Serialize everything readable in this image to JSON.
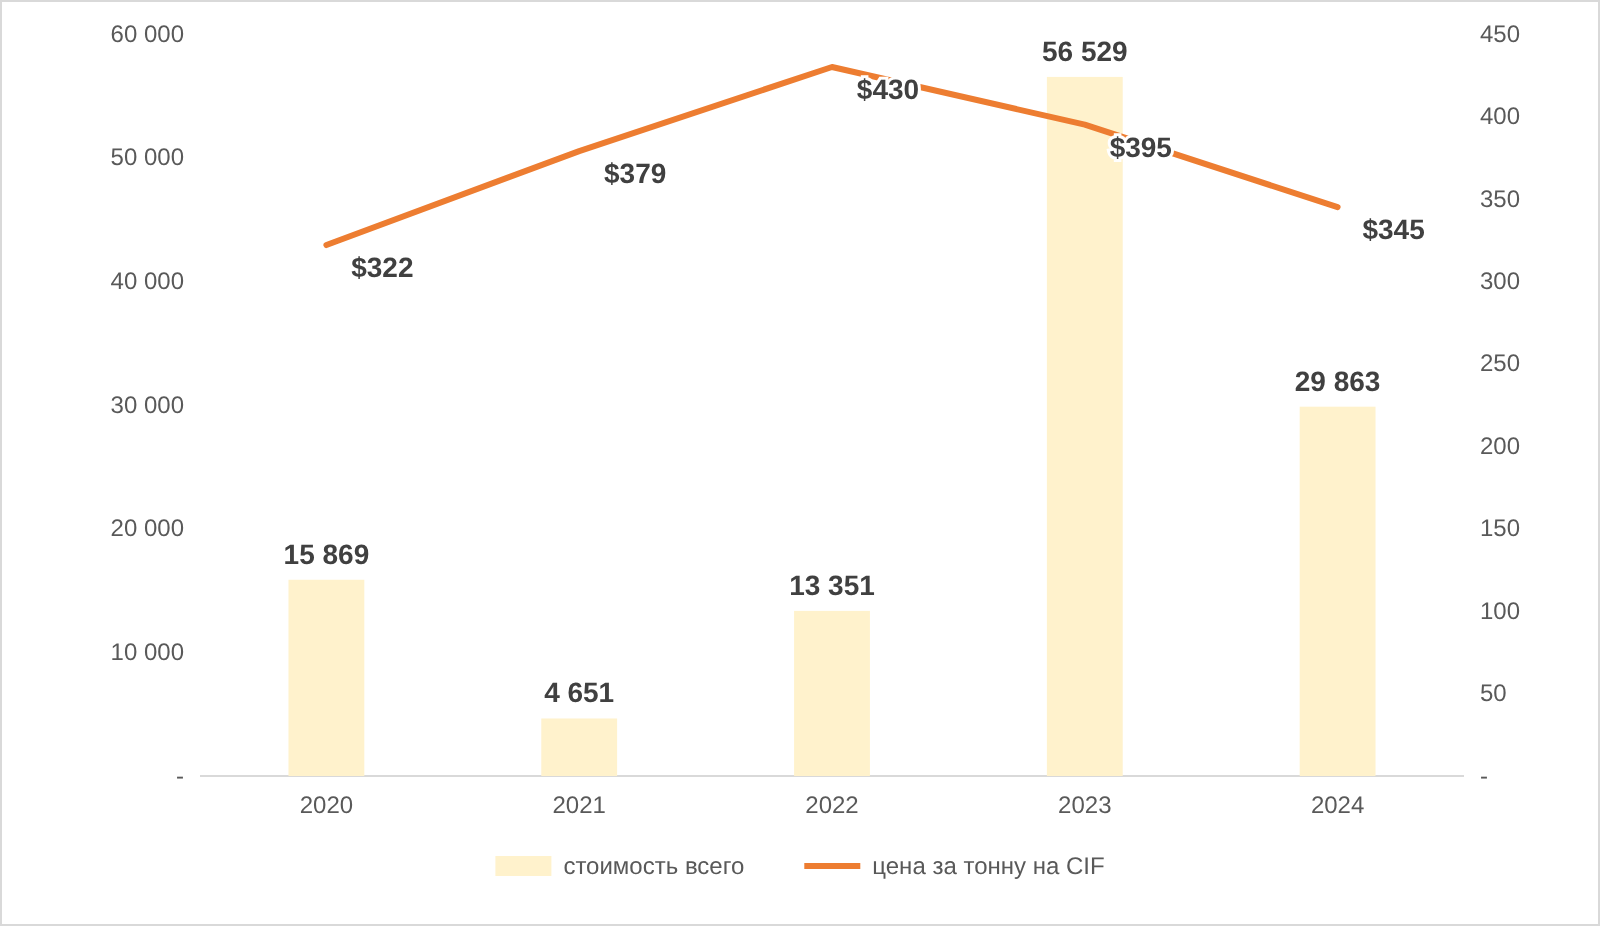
{
  "chart_data": {
    "type": "bar",
    "categories": [
      "2020",
      "2021",
      "2022",
      "2023",
      "2024"
    ],
    "series": [
      {
        "name": "стоимость всего",
        "color": "#fff2cc",
        "values": [
          15869,
          4651,
          13351,
          56529,
          29863
        ],
        "value_labels": [
          "15 869",
          "4 651",
          "13 351",
          "56 529",
          "29 863"
        ]
      },
      {
        "name": "цена за тонну на CIF",
        "type": "line",
        "axis": "y2",
        "color": "#ed7d31",
        "values": [
          322,
          379,
          430,
          395,
          345
        ],
        "value_labels": [
          "$322",
          "$379",
          "$430",
          "$395",
          "$345"
        ]
      }
    ],
    "ylim": [
      0,
      60000
    ],
    "yticks": [
      {
        "value": 0,
        "label": "-"
      },
      {
        "value": 10000,
        "label": "10 000"
      },
      {
        "value": 20000,
        "label": "20 000"
      },
      {
        "value": 30000,
        "label": "30 000"
      },
      {
        "value": 40000,
        "label": "40 000"
      },
      {
        "value": 50000,
        "label": "50 000"
      },
      {
        "value": 60000,
        "label": "60 000"
      }
    ],
    "y2lim": [
      0,
      450
    ],
    "y2ticks": [
      {
        "value": 0,
        "label": "-"
      },
      50,
      100,
      150,
      200,
      250,
      300,
      350,
      400,
      450
    ],
    "grid": false,
    "legend": "bottom",
    "marker": "none",
    "line_style": "solid"
  }
}
